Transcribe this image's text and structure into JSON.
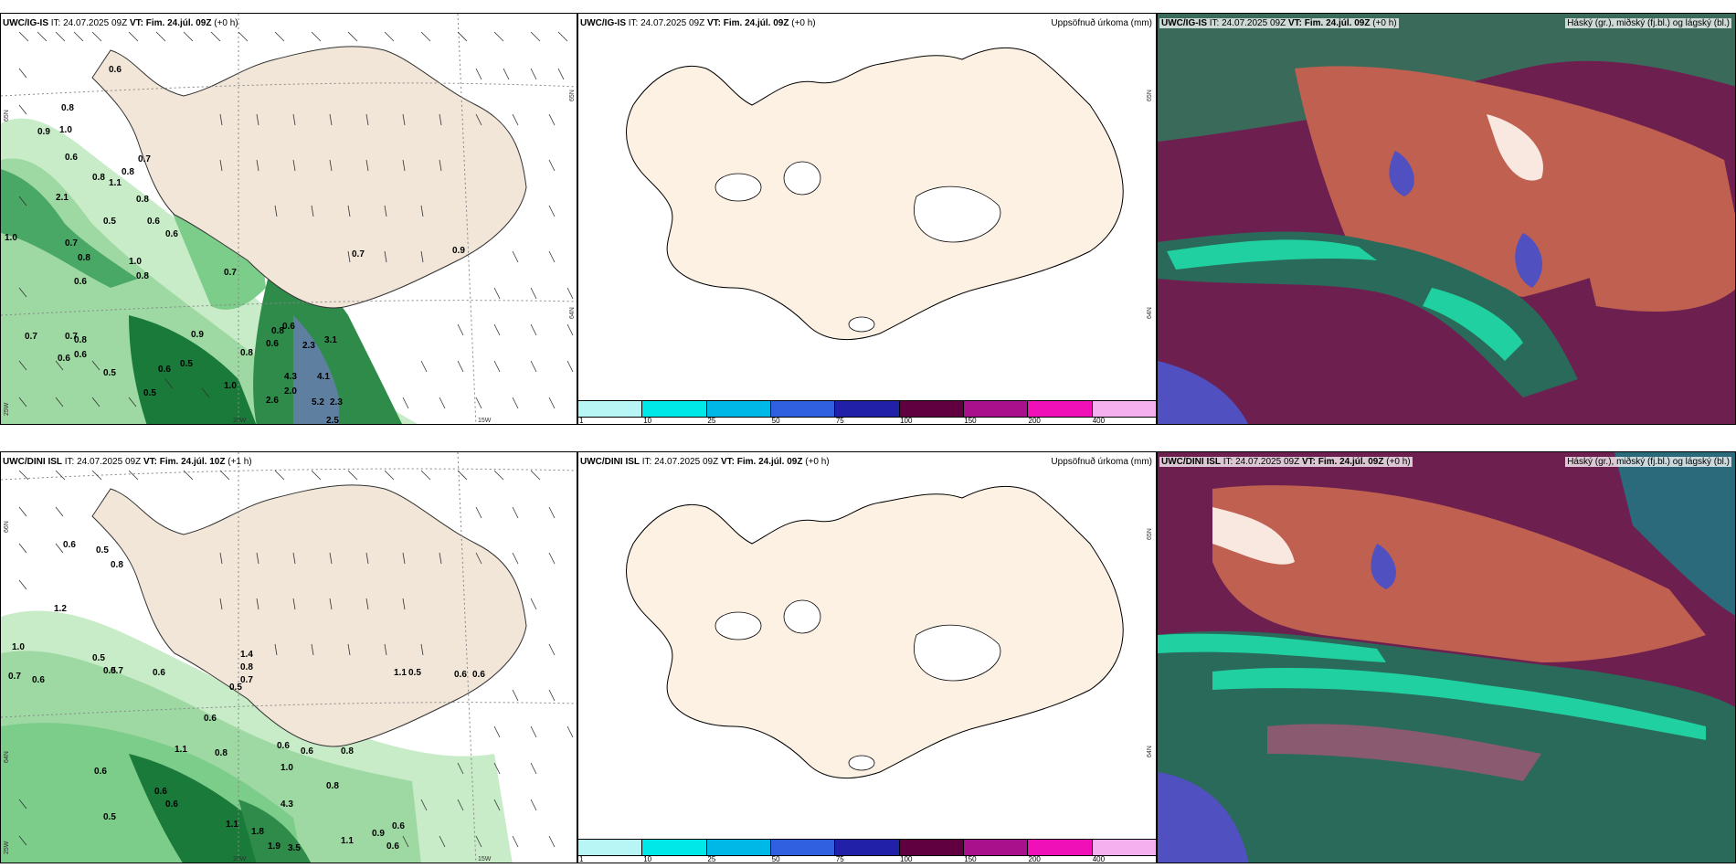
{
  "panels": {
    "p1": {
      "model": "UWC/IG-IS",
      "it_label": "IT:",
      "it_value": "24.07.2025 09Z",
      "vt_label": "VT:",
      "vt_value": "Fim. 24.júl. 09Z",
      "lead": "(+0 h)",
      "axis": {
        "left_top": "65N",
        "left_mid": "64N",
        "left_bot": "25W",
        "right_top": "65N",
        "right_mid": "64N",
        "bottom_a": "20W",
        "bottom_b": "15W"
      },
      "numbers": [
        "0.6",
        "0.8",
        "0.9",
        "1.0",
        "0.6",
        "0.8",
        "1.1",
        "0.7",
        "0.8",
        "2.1",
        "0.5",
        "0.8",
        "0.6",
        "0.6",
        "1.0",
        "0.7",
        "0.8",
        "1.0",
        "0.7",
        "0.8",
        "0.6",
        "0.7",
        "0.9",
        "0.8",
        "0.6",
        "0.6",
        "0.6",
        "0.7",
        "0.5",
        "0.9",
        "0.8",
        "0.5",
        "0.6",
        "0.8",
        "2.3",
        "3.1",
        "4.3",
        "2.0",
        "1.0",
        "2.6",
        "4.1",
        "5.2",
        "2.3",
        "2.5",
        "0.5",
        "0.7",
        "0.6"
      ]
    },
    "p2": {
      "model": "UWC/IG-IS",
      "it_label": "IT:",
      "it_value": "24.07.2025 09Z",
      "vt_label": "VT:",
      "vt_value": "Fim. 24.júl. 09Z",
      "lead": "(+0 h)",
      "title_right": "Uppsöfnuð úrkoma (mm)",
      "axis": {
        "right_top": "65N",
        "right_mid": "64N"
      }
    },
    "p3": {
      "model": "UWC/IG-IS",
      "it_label": "IT:",
      "it_value": "24.07.2025 09Z",
      "vt_label": "VT:",
      "vt_value": "Fim. 24.júl. 09Z",
      "lead": "(+0 h)",
      "title_right": "Háský (gr.), miðský (fj.bl.) og lágský (bl.)"
    },
    "p4": {
      "model": "UWC/DINI ISL",
      "it_label": "IT:",
      "it_value": "24.07.2025 09Z",
      "vt_label": "VT:",
      "vt_value": "Fim. 24.júl. 10Z",
      "lead": "(+1 h)",
      "axis": {
        "left_top": "66N",
        "left_mid": "64N",
        "left_bot": "25W",
        "bottom_a": "20W",
        "bottom_b": "15W"
      },
      "numbers": [
        "0.6",
        "0.5",
        "1.2",
        "0.8",
        "1.0",
        "0.7",
        "0.5",
        "0.7",
        "0.6",
        "0.6",
        "0.5",
        "1.4",
        "0.8",
        "0.7",
        "0.5",
        "0.6",
        "1.1",
        "0.5",
        "0.6",
        "0.6",
        "0.6",
        "1.1",
        "0.8",
        "0.6",
        "0.6",
        "1.0",
        "0.8",
        "0.8",
        "0.6",
        "0.6",
        "4.3",
        "1.8",
        "1.9",
        "3.5",
        "1.1",
        "0.9",
        "0.6",
        "0.5",
        "0.6",
        "1.1"
      ]
    },
    "p5": {
      "model": "UWC/DINI ISL",
      "it_label": "IT:",
      "it_value": "24.07.2025 09Z",
      "vt_label": "VT:",
      "vt_value": "Fim. 24.júl. 09Z",
      "lead": "(+0 h)",
      "title_right": "Uppsöfnuð úrkoma (mm)",
      "axis": {
        "right_top": "65N",
        "right_mid": "64N"
      }
    },
    "p6": {
      "model": "UWC/DINI ISL",
      "it_label": "IT:",
      "it_value": "24.07.2025 09Z",
      "vt_label": "VT:",
      "vt_value": "Fim. 24.júl. 09Z",
      "lead": "(+0 h)",
      "title_right": "Háský (gr.), miðský (fj.bl.) og lágský (bl.)"
    }
  },
  "colorbar": {
    "labels": [
      "1",
      "10",
      "25",
      "50",
      "75",
      "100",
      "150",
      "200",
      "400"
    ],
    "colors": [
      "#b8f5f5",
      "#00e8e8",
      "#00b8e8",
      "#3060e0",
      "#2020a8",
      "#600040",
      "#a8108c",
      "#f010b8",
      "#f5b0f0"
    ]
  },
  "colors": {
    "land": "#f2e6d9",
    "land_precip": "#fdf1e4",
    "green_light": "#c7ecc7",
    "green_mid": "#7ccc8a",
    "green_dark": "#1a7a3a",
    "cloud_high": "#6d2050",
    "cloud_mid": "#c06050",
    "cloud_low": "#2a6a5a",
    "cloud_teal": "#20d0a0",
    "cloud_blue": "#5050c0"
  }
}
